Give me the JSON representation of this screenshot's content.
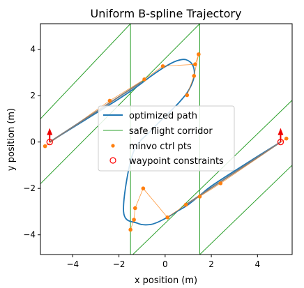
{
  "chart_data": {
    "type": "line",
    "title": "Uniform B-spline Trajectory",
    "xlabel": "x position (m)",
    "ylabel": "y position (m)",
    "xlim": [
      -5.4,
      5.5
    ],
    "ylim": [
      -4.85,
      5.1
    ],
    "xticks": [
      -4,
      -2,
      0,
      2,
      4
    ],
    "xtick_labels": [
      "−4",
      "−2",
      "0",
      "2",
      "4"
    ],
    "yticks": [
      -4,
      -2,
      0,
      2,
      4
    ],
    "ytick_labels": [
      "−4",
      "−2",
      "0",
      "2",
      "4"
    ],
    "grid": false,
    "legend_position": "center",
    "colors": {
      "path": "#1f77b4",
      "corridor": "#2ca02c",
      "ctrl": "#ff7f0e",
      "waypoint": "#ff0000",
      "arrow": "#ee0000",
      "overlay": "#7f7f7f"
    },
    "series": [
      {
        "name": "optimized path",
        "marker": "line",
        "x": [
          -5.0,
          -4.0,
          -3.0,
          -2.0,
          -1.2,
          -0.6,
          0.0,
          0.5,
          0.9,
          1.2,
          1.25,
          1.0,
          0.6,
          0.1,
          -0.6,
          -1.4,
          -1.8,
          -1.2,
          -0.6,
          0.0,
          0.5,
          1.0,
          1.5,
          2.0,
          3.0,
          4.0,
          5.0
        ],
        "y": [
          0.0,
          0.62,
          1.24,
          1.86,
          2.4,
          2.85,
          3.25,
          3.5,
          3.55,
          3.3,
          2.8,
          2.2,
          1.7,
          1.2,
          0.5,
          -0.5,
          -3.0,
          -3.5,
          -3.55,
          -3.3,
          -3.0,
          -2.7,
          -2.3,
          -1.9,
          -1.25,
          -0.62,
          0.0
        ]
      },
      {
        "name": "safe flight corridor",
        "marker": "line",
        "lines": [
          {
            "x": [
              -5.4,
              -1.5
            ],
            "y": [
              1.0,
              5.1
            ]
          },
          {
            "x": [
              -5.4,
              1.5
            ],
            "y": [
              -1.8,
              5.1
            ]
          },
          {
            "x": [
              -1.5,
              -1.5
            ],
            "y": [
              -4.85,
              5.1
            ]
          },
          {
            "x": [
              1.5,
              1.5
            ],
            "y": [
              -4.85,
              5.1
            ]
          },
          {
            "x": [
              -1.4,
              5.5
            ],
            "y": [
              -4.85,
              1.8
            ]
          },
          {
            "x": [
              1.5,
              5.5
            ],
            "y": [
              -4.85,
              -1.0
            ]
          }
        ]
      },
      {
        "name": "minvo ctrl pts",
        "marker": "dot",
        "x": [
          -5.2,
          -2.4,
          -0.9,
          -0.1,
          1.3,
          1.45,
          1.25,
          0.95,
          -1.5,
          -1.35,
          -1.3,
          -0.95,
          0.1,
          0.9,
          1.5,
          2.4,
          5.25
        ],
        "y": [
          -0.18,
          1.78,
          2.7,
          3.27,
          3.35,
          3.78,
          2.85,
          2.02,
          -3.78,
          -3.35,
          -2.85,
          -2.0,
          -3.25,
          -2.7,
          -2.35,
          -1.78,
          0.15
        ]
      },
      {
        "name": "waypoint constraints",
        "marker": "circle",
        "x": [
          -5.0,
          5.0
        ],
        "y": [
          0.0,
          0.0
        ]
      }
    ]
  }
}
